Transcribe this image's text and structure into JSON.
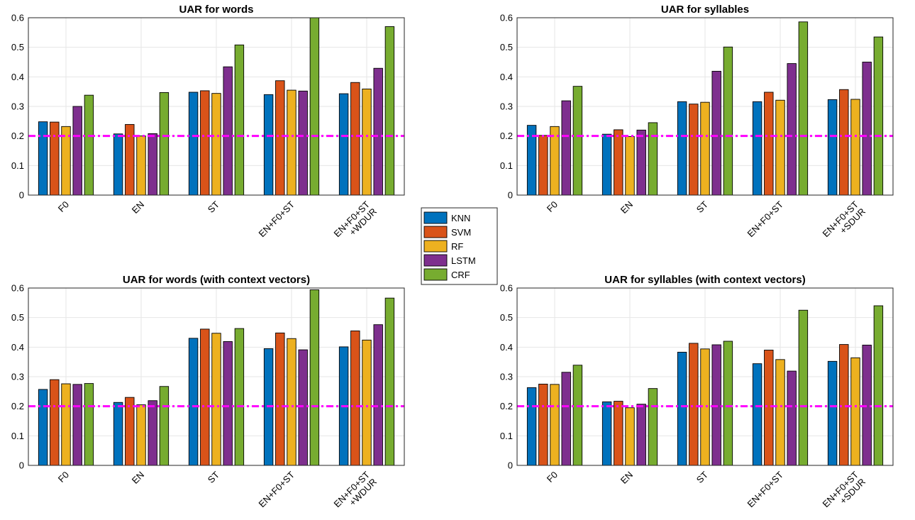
{
  "chart_data": [
    {
      "type": "bar",
      "title": "UAR for words",
      "categories": [
        [
          "F0"
        ],
        [
          "EN"
        ],
        [
          "ST"
        ],
        [
          "EN+F0+ST"
        ],
        [
          "EN+F0+ST",
          "+WDUR"
        ]
      ],
      "series": [
        {
          "name": "KNN",
          "values": [
            0.248,
            0.207,
            0.348,
            0.34,
            0.343
          ]
        },
        {
          "name": "SVM",
          "values": [
            0.247,
            0.239,
            0.353,
            0.387,
            0.381
          ]
        },
        {
          "name": "RF",
          "values": [
            0.232,
            0.2,
            0.344,
            0.355,
            0.359
          ]
        },
        {
          "name": "LSTM",
          "values": [
            0.3,
            0.208,
            0.434,
            0.352,
            0.429
          ]
        },
        {
          "name": "CRF",
          "values": [
            0.338,
            0.347,
            0.508,
            0.6,
            0.57
          ]
        }
      ],
      "ylim": [
        0,
        0.6
      ],
      "yticks": [
        "0",
        "0.1",
        "0.2",
        "0.3",
        "0.4",
        "0.5",
        "0.6"
      ],
      "reference_line": 0.2,
      "grid": true
    },
    {
      "type": "bar",
      "title": "UAR for syllables",
      "categories": [
        [
          "F0"
        ],
        [
          "EN"
        ],
        [
          "ST"
        ],
        [
          "EN+F0+ST"
        ],
        [
          "EN+F0+ST",
          "+SDUR"
        ]
      ],
      "series": [
        {
          "name": "KNN",
          "values": [
            0.236,
            0.206,
            0.316,
            0.316,
            0.323
          ]
        },
        {
          "name": "SVM",
          "values": [
            0.202,
            0.221,
            0.308,
            0.348,
            0.357
          ]
        },
        {
          "name": "RF",
          "values": [
            0.232,
            0.198,
            0.314,
            0.321,
            0.324
          ]
        },
        {
          "name": "LSTM",
          "values": [
            0.319,
            0.22,
            0.419,
            0.445,
            0.45
          ]
        },
        {
          "name": "CRF",
          "values": [
            0.368,
            0.245,
            0.501,
            0.586,
            0.535
          ]
        }
      ],
      "ylim": [
        0,
        0.6
      ],
      "yticks": [
        "0",
        "0.1",
        "0.2",
        "0.3",
        "0.4",
        "0.5",
        "0.6"
      ],
      "reference_line": 0.2,
      "grid": true
    },
    {
      "type": "bar",
      "title": "UAR for words (with context vectors)",
      "categories": [
        [
          "F0"
        ],
        [
          "EN"
        ],
        [
          "ST"
        ],
        [
          "EN+F0+ST"
        ],
        [
          "EN+F0+ST",
          "+WDUR"
        ]
      ],
      "series": [
        {
          "name": "KNN",
          "values": [
            0.257,
            0.213,
            0.43,
            0.395,
            0.401
          ]
        },
        {
          "name": "SVM",
          "values": [
            0.29,
            0.23,
            0.461,
            0.448,
            0.455
          ]
        },
        {
          "name": "RF",
          "values": [
            0.276,
            0.205,
            0.447,
            0.429,
            0.424
          ]
        },
        {
          "name": "LSTM",
          "values": [
            0.274,
            0.219,
            0.419,
            0.391,
            0.476
          ]
        },
        {
          "name": "CRF",
          "values": [
            0.277,
            0.267,
            0.463,
            0.594,
            0.566
          ]
        }
      ],
      "ylim": [
        0,
        0.6
      ],
      "yticks": [
        "0",
        "0.1",
        "0.2",
        "0.3",
        "0.4",
        "0.5",
        "0.6"
      ],
      "reference_line": 0.2,
      "grid": true
    },
    {
      "type": "bar",
      "title": "UAR for syllables (with context vectors)",
      "categories": [
        [
          "F0"
        ],
        [
          "EN"
        ],
        [
          "ST"
        ],
        [
          "EN+F0+ST"
        ],
        [
          "EN+F0+ST",
          "+SDUR"
        ]
      ],
      "series": [
        {
          "name": "KNN",
          "values": [
            0.263,
            0.215,
            0.383,
            0.344,
            0.352
          ]
        },
        {
          "name": "SVM",
          "values": [
            0.275,
            0.217,
            0.413,
            0.39,
            0.409
          ]
        },
        {
          "name": "RF",
          "values": [
            0.274,
            0.195,
            0.394,
            0.358,
            0.364
          ]
        },
        {
          "name": "LSTM",
          "values": [
            0.315,
            0.207,
            0.408,
            0.319,
            0.407
          ]
        },
        {
          "name": "CRF",
          "values": [
            0.339,
            0.26,
            0.42,
            0.525,
            0.54
          ]
        }
      ],
      "ylim": [
        0,
        0.6
      ],
      "yticks": [
        "0",
        "0.1",
        "0.2",
        "0.3",
        "0.4",
        "0.5",
        "0.6"
      ],
      "reference_line": 0.2,
      "grid": true
    }
  ],
  "legend": {
    "position": "center",
    "entries": [
      "KNN",
      "SVM",
      "RF",
      "LSTM",
      "CRF"
    ]
  },
  "colors": {
    "KNN": "#0072BD",
    "SVM": "#D95319",
    "RF": "#EDB120",
    "LSTM": "#7E2F8E",
    "CRF": "#77AC30",
    "reference_line": "#FF00FF"
  }
}
